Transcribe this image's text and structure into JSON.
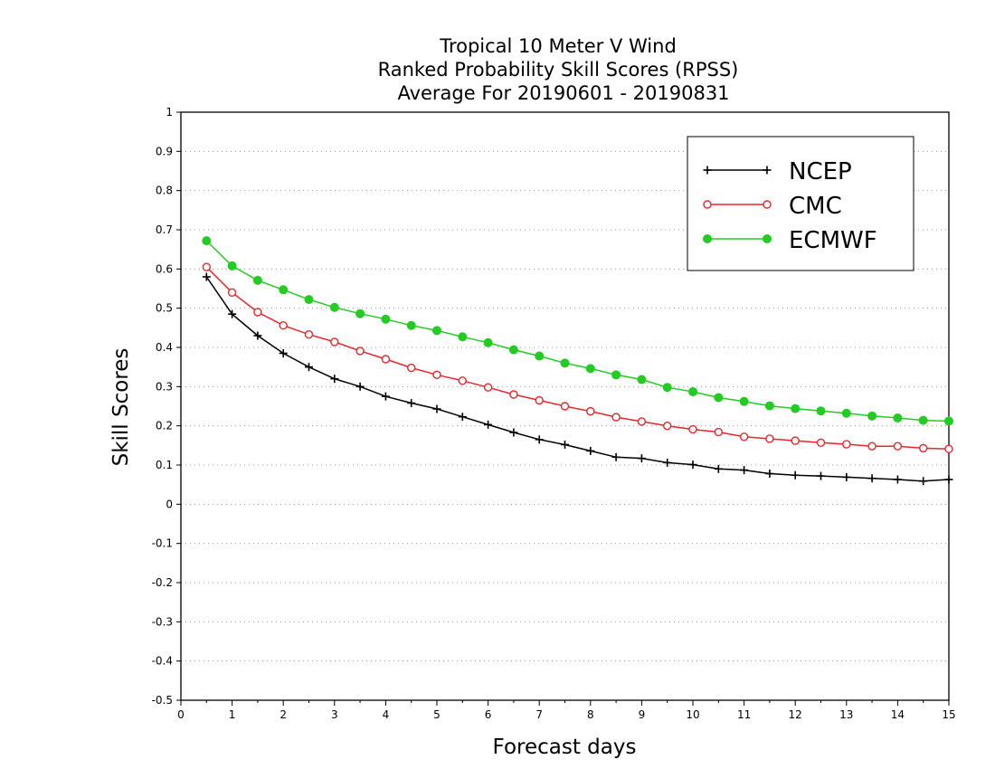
{
  "chart_data": {
    "type": "line",
    "title": [
      "Tropical 10 Meter V Wind",
      "Ranked Probability Skill Scores (RPSS)",
      "Average For 20190601 - 20190831"
    ],
    "xlabel": "Forecast days",
    "ylabel": "Skill Scores",
    "xlim": [
      0,
      15
    ],
    "ylim": [
      -0.5,
      1
    ],
    "xticks": [
      "0",
      "1",
      "2",
      "3",
      "4",
      "5",
      "6",
      "7",
      "8",
      "9",
      "10",
      "11",
      "12",
      "13",
      "14",
      "15"
    ],
    "yticks": [
      "1",
      "0.9",
      "0.8",
      "0.7",
      "0.6",
      "0.5",
      "0.4",
      "0.3",
      "0.2",
      "0.1",
      "0",
      "-0.1",
      "-0.2",
      "-0.3",
      "-0.4",
      "-0.5"
    ],
    "grid": true,
    "legend_position": "top-right",
    "x": [
      0.5,
      1,
      1.5,
      2,
      2.5,
      3,
      3.5,
      4,
      4.5,
      5,
      5.5,
      6,
      6.5,
      7,
      7.5,
      8,
      8.5,
      9,
      9.5,
      10,
      10.5,
      11,
      11.5,
      12,
      12.5,
      13,
      13.5,
      14,
      14.5,
      15
    ],
    "series": [
      {
        "name": "NCEP",
        "color": "#000000",
        "marker": "plus",
        "values": [
          0.58,
          0.485,
          0.43,
          0.385,
          0.35,
          0.32,
          0.3,
          0.275,
          0.258,
          0.243,
          0.223,
          0.203,
          0.183,
          0.165,
          0.152,
          0.136,
          0.12,
          0.117,
          0.106,
          0.101,
          0.09,
          0.087,
          0.078,
          0.074,
          0.072,
          0.069,
          0.066,
          0.063,
          0.059,
          0.063
        ]
      },
      {
        "name": "CMC",
        "color": "#e8262a",
        "marker": "open-circle",
        "values": [
          0.605,
          0.54,
          0.49,
          0.456,
          0.433,
          0.414,
          0.391,
          0.37,
          0.348,
          0.33,
          0.315,
          0.298,
          0.28,
          0.265,
          0.25,
          0.237,
          0.222,
          0.211,
          0.2,
          0.191,
          0.184,
          0.172,
          0.167,
          0.162,
          0.157,
          0.153,
          0.148,
          0.148,
          0.143,
          0.141
        ]
      },
      {
        "name": "ECMWF",
        "color": "#22cc22",
        "marker": "filled-circle",
        "values": [
          0.672,
          0.608,
          0.571,
          0.547,
          0.522,
          0.502,
          0.486,
          0.472,
          0.456,
          0.443,
          0.427,
          0.412,
          0.394,
          0.378,
          0.36,
          0.346,
          0.33,
          0.318,
          0.298,
          0.287,
          0.272,
          0.262,
          0.251,
          0.244,
          0.238,
          0.232,
          0.225,
          0.22,
          0.214,
          0.212
        ]
      }
    ]
  }
}
